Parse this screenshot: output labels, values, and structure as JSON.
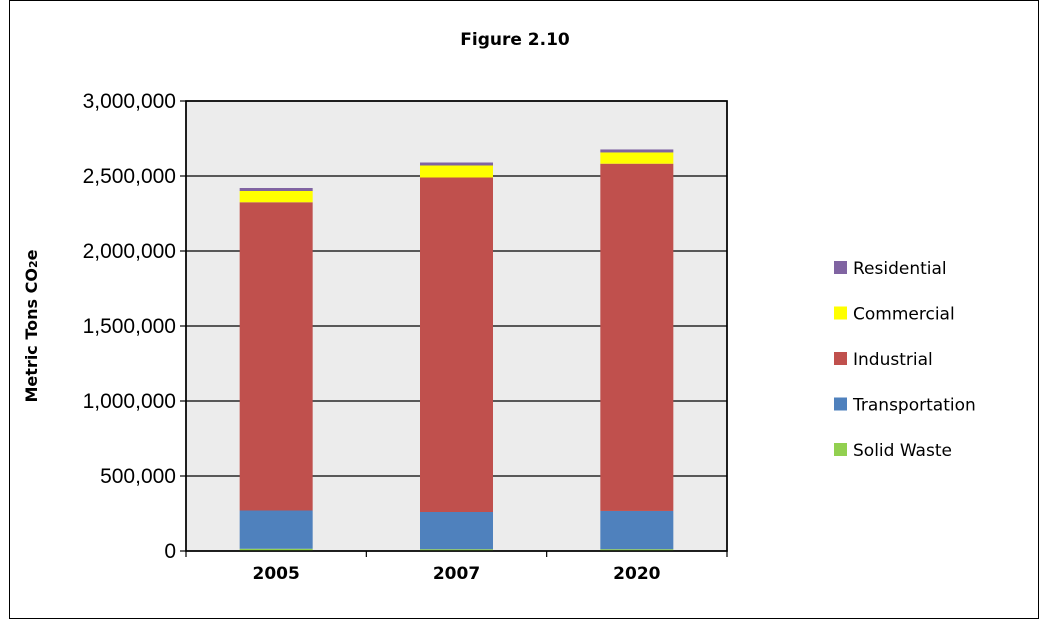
{
  "chart_data": {
    "type": "bar",
    "stacked": true,
    "title": "Figure 2.10",
    "xlabel": "",
    "ylabel_main": "Metric Tons CO",
    "ylabel_sub": "2",
    "ylabel_suffix": "e",
    "categories": [
      "2005",
      "2007",
      "2020"
    ],
    "ylim": [
      0,
      3000000
    ],
    "yticks": [
      0,
      500000,
      1000000,
      1500000,
      2000000,
      2500000,
      3000000
    ],
    "ytick_labels": [
      "0",
      "500,000",
      "1,000,000",
      "1,500,000",
      "2,000,000",
      "2,500,000",
      "3,000,000"
    ],
    "grid": true,
    "legend_position": "right",
    "series": [
      {
        "name": "Solid Waste",
        "color": "#92d050",
        "values": [
          15000,
          12000,
          12000
        ]
      },
      {
        "name": "Transportation",
        "color": "#4f81bd",
        "values": [
          255000,
          248000,
          255000
        ]
      },
      {
        "name": "Industrial",
        "color": "#c0504d",
        "values": [
          2055000,
          2230000,
          2315000
        ]
      },
      {
        "name": "Commercial",
        "color": "#ffff00",
        "values": [
          75000,
          80000,
          75000
        ]
      },
      {
        "name": "Residential",
        "color": "#8064a2",
        "values": [
          20000,
          20000,
          20000
        ]
      }
    ],
    "legend_order": [
      "Residential",
      "Commercial",
      "Industrial",
      "Transportation",
      "Solid Waste"
    ]
  }
}
